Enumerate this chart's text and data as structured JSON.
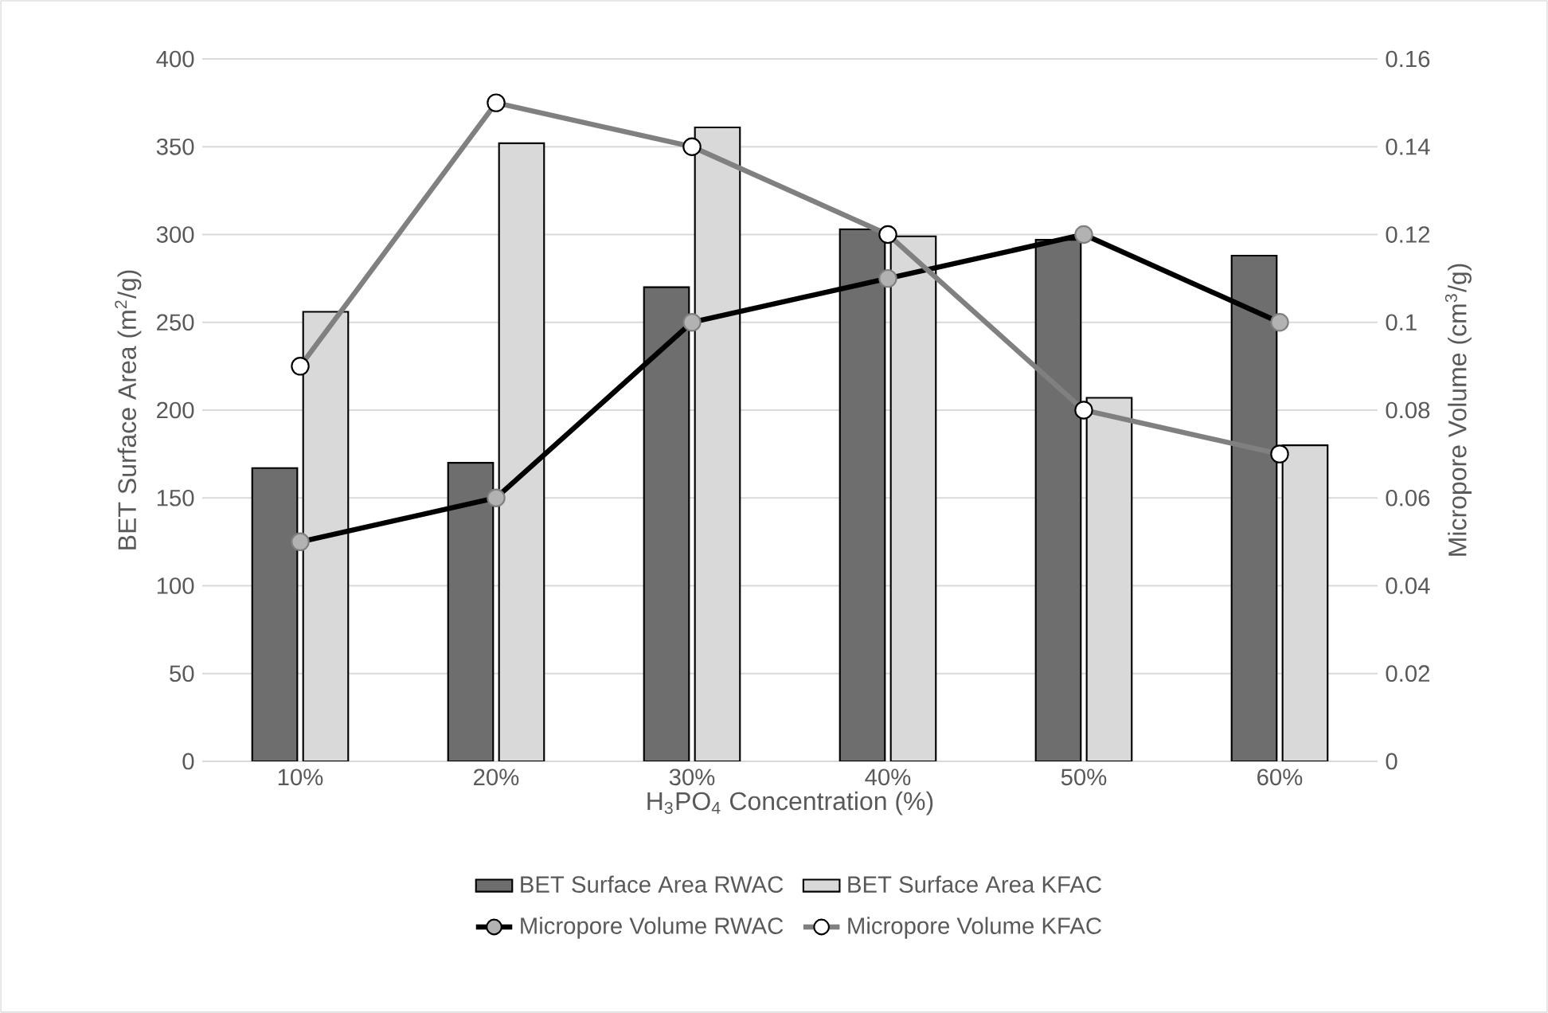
{
  "chart_data": {
    "type": "bar",
    "categories": [
      "10%",
      "20%",
      "30%",
      "40%",
      "50%",
      "60%"
    ],
    "xlabel": "H$_{3}$PO$_{4}$ Concentration (%)",
    "ylabel": "BET Surface Area (m$^{2}$/g)",
    "y2label": "Micropore Volume (cm$^{3}$/g)",
    "series": [
      {
        "name": "BET Surface Area RWAC",
        "color": "#6e6e6e",
        "values": [
          167,
          170,
          270,
          303,
          297,
          288
        ]
      },
      {
        "name": "BET Surface Area KFAC",
        "color": "#d9d9d9",
        "values": [
          256,
          352,
          361,
          299,
          207,
          180
        ]
      },
      {
        "name": "Micropore Volume RWAC",
        "type": "line",
        "axis": "y2",
        "color": "#000000",
        "values": [
          0.05,
          0.06,
          0.1,
          0.11,
          0.12,
          0.1
        ]
      },
      {
        "name": "Micropore Volume KFAC",
        "type": "line",
        "axis": "y2",
        "color": "#808080",
        "values": [
          0.09,
          0.15,
          0.14,
          0.12,
          0.08,
          0.07
        ]
      }
    ],
    "ylim": [
      0,
      400
    ],
    "yticks": [
      0,
      50,
      100,
      150,
      200,
      250,
      300,
      350,
      400
    ],
    "y2lim": [
      0,
      0.16
    ],
    "y2ticks": [
      0,
      0.02,
      0.04,
      0.06,
      0.08,
      0.1,
      0.12,
      0.14,
      0.16
    ],
    "grid": "y",
    "legend": "bottom",
    "marker": "circle",
    "line_style": "solid"
  }
}
